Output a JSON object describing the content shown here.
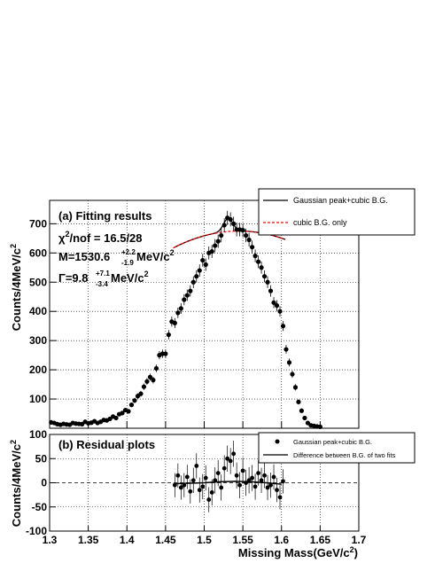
{
  "chart_data": [
    {
      "type": "scatter",
      "panel_label": "(a) Fitting results",
      "xlabel": "Missing Mass(GeV/c²)",
      "ylabel": "Counts/4MeV/c²",
      "xlim": [
        1.3,
        1.7
      ],
      "ylim": [
        0,
        780
      ],
      "x_ticks": [
        "1.3",
        "1.35",
        "1.4",
        "1.45",
        "1.5",
        "1.55",
        "1.6",
        "1.65",
        "1.7"
      ],
      "y_ticks": [
        "100",
        "200",
        "300",
        "400",
        "500",
        "600",
        "700"
      ],
      "grid": true,
      "legend_position": "top-right",
      "annotations": {
        "chi2_main": "χ",
        "chi2_sup": "2",
        "chi2_rest": "/nof = 16.5/28",
        "mass_main": "M=1530.6",
        "mass_sup": "+2.2",
        "mass_sub": "-1.9",
        "mass_unit": " MeV/c",
        "mass_unit_sup": "2",
        "width_main": "Γ=9.8",
        "width_sup": "+7.1",
        "width_sub": "-3.4",
        "width_unit": " MeV/c",
        "width_unit_sup": "2"
      },
      "legend": [
        {
          "label": "Gaussian peak+cubic B.G.",
          "style": "solid",
          "color": "#000000"
        },
        {
          "label": "cubic B.G. only",
          "style": "dashed",
          "color": "#ff0000"
        }
      ],
      "x": [
        1.302,
        1.306,
        1.31,
        1.314,
        1.318,
        1.322,
        1.326,
        1.33,
        1.334,
        1.338,
        1.342,
        1.346,
        1.35,
        1.354,
        1.358,
        1.362,
        1.366,
        1.37,
        1.374,
        1.378,
        1.382,
        1.386,
        1.39,
        1.394,
        1.398,
        1.402,
        1.406,
        1.41,
        1.414,
        1.418,
        1.422,
        1.426,
        1.43,
        1.434,
        1.438,
        1.442,
        1.446,
        1.45,
        1.454,
        1.458,
        1.462,
        1.466,
        1.47,
        1.474,
        1.478,
        1.482,
        1.486,
        1.49,
        1.494,
        1.498,
        1.502,
        1.506,
        1.51,
        1.514,
        1.518,
        1.522,
        1.526,
        1.53,
        1.534,
        1.538,
        1.542,
        1.546,
        1.55,
        1.554,
        1.558,
        1.562,
        1.566,
        1.57,
        1.574,
        1.578,
        1.582,
        1.586,
        1.59,
        1.594,
        1.598,
        1.602,
        1.606,
        1.61,
        1.614,
        1.618,
        1.622,
        1.626,
        1.63,
        1.634,
        1.638,
        1.642,
        1.646,
        1.65
      ],
      "y": [
        20,
        18,
        14,
        12,
        15,
        13,
        12,
        18,
        16,
        15,
        14,
        22,
        17,
        19,
        24,
        18,
        22,
        28,
        27,
        32,
        40,
        35,
        48,
        52,
        62,
        58,
        80,
        95,
        110,
        118,
        142,
        160,
        175,
        165,
        205,
        250,
        255,
        255,
        320,
        365,
        360,
        395,
        410,
        440,
        455,
        470,
        500,
        520,
        540,
        575,
        560,
        600,
        605,
        625,
        640,
        660,
        695,
        720,
        715,
        700,
        680,
        680,
        678,
        660,
        645,
        620,
        590,
        570,
        550,
        520,
        500,
        470,
        430,
        420,
        400,
        350,
        270,
        225,
        185,
        140,
        90,
        60,
        35,
        18,
        10,
        8,
        6,
        5
      ],
      "fit_x_range": [
        1.46,
        1.605
      ]
    },
    {
      "type": "scatter",
      "panel_label": "(b) Residual plots",
      "xlabel": "Missing Mass(GeV/c²)",
      "ylabel": "Counts/4MeV/c²",
      "xlim": [
        1.3,
        1.7
      ],
      "ylim": [
        -100,
        100
      ],
      "x_ticks": [
        "1.3",
        "1.35",
        "1.4",
        "1.45",
        "1.5",
        "1.55",
        "1.6",
        "1.65",
        "1.7"
      ],
      "y_ticks": [
        "100",
        "50",
        "0",
        "-50",
        "-100"
      ],
      "grid": true,
      "legend_position": "top-right",
      "legend": [
        {
          "label": "Gaussian peak+cubic B.G.",
          "style": "marker",
          "color": "#000000"
        },
        {
          "label": "Difference between B.G. of two fits",
          "style": "solid",
          "color": "#000000"
        }
      ],
      "x": [
        1.462,
        1.466,
        1.47,
        1.474,
        1.478,
        1.482,
        1.486,
        1.49,
        1.494,
        1.498,
        1.502,
        1.506,
        1.51,
        1.514,
        1.518,
        1.522,
        1.526,
        1.53,
        1.534,
        1.538,
        1.542,
        1.546,
        1.55,
        1.554,
        1.558,
        1.562,
        1.566,
        1.57,
        1.574,
        1.578,
        1.582,
        1.586,
        1.59,
        1.594,
        1.598,
        1.602
      ],
      "y": [
        -5,
        15,
        -10,
        -5,
        12,
        -18,
        5,
        35,
        -15,
        -8,
        10,
        -35,
        -20,
        5,
        20,
        -10,
        30,
        50,
        45,
        60,
        15,
        -5,
        25,
        0,
        5,
        10,
        -8,
        20,
        5,
        15,
        -10,
        -5,
        12,
        -15,
        -30,
        3
      ],
      "errors": [
        25,
        25,
        25,
        25,
        25,
        25,
        26,
        26,
        26,
        26,
        26,
        26,
        27,
        27,
        27,
        27,
        27,
        27,
        27,
        27,
        27,
        27,
        27,
        27,
        27,
        27,
        27,
        26,
        26,
        26,
        26,
        26,
        26,
        25,
        25,
        25
      ],
      "difference_curve_x": [
        1.46,
        1.48,
        1.5,
        1.52,
        1.54,
        1.56,
        1.58,
        1.6
      ],
      "difference_curve_y": [
        -2,
        -1,
        0,
        2,
        3,
        2,
        0,
        -3
      ]
    }
  ]
}
